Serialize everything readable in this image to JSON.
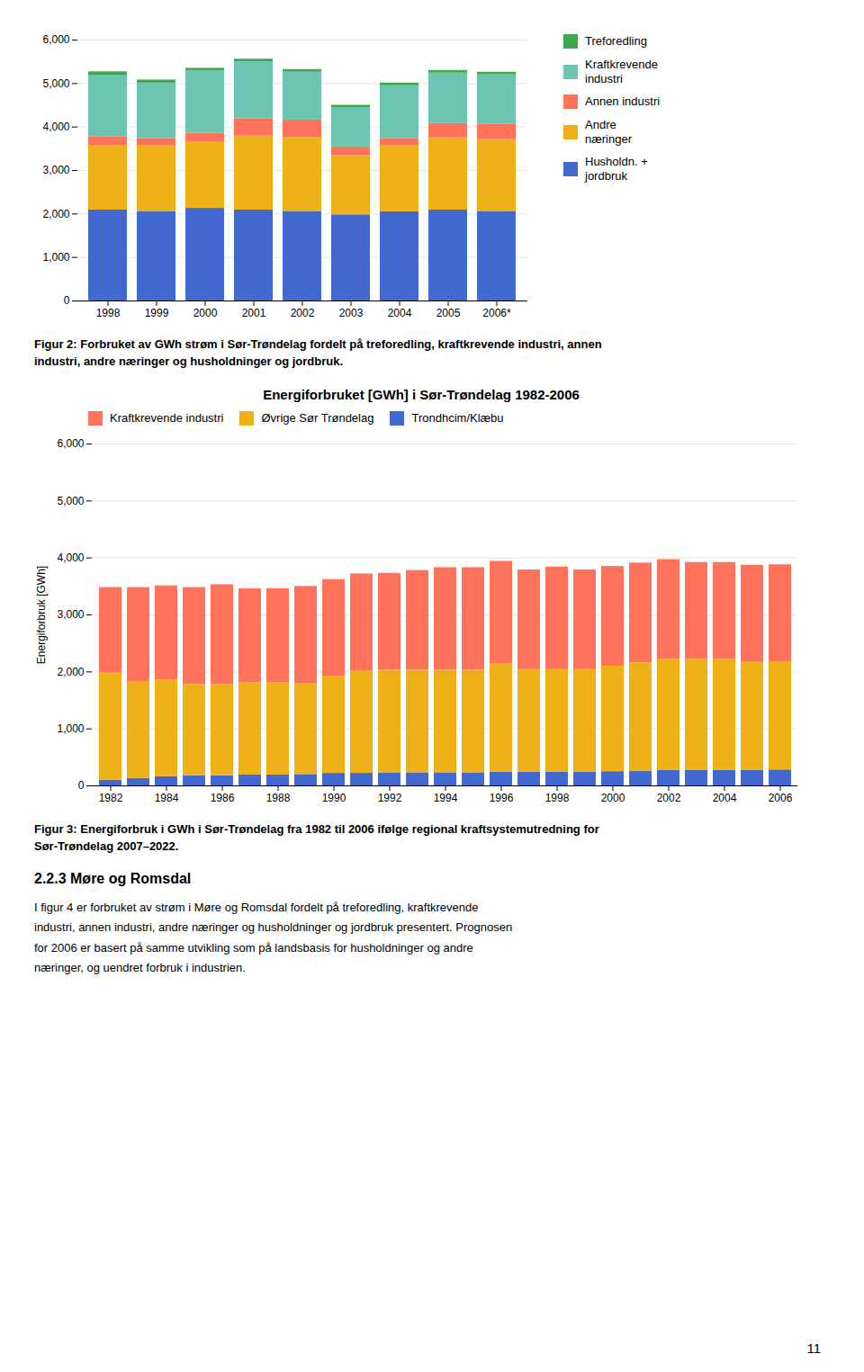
{
  "chart_data": [
    {
      "type": "bar",
      "stacked": true,
      "categories": [
        "1998",
        "1999",
        "2000",
        "2001",
        "2002",
        "2003",
        "2004",
        "2005",
        "2006*"
      ],
      "series": [
        {
          "name": "Husholdn. +\njordbruk",
          "values": [
            2090,
            2060,
            2130,
            2090,
            2060,
            1980,
            2050,
            2090,
            2060
          ]
        },
        {
          "name": "Andre\nnæringer",
          "values": [
            1490,
            1520,
            1530,
            1700,
            1700,
            1360,
            1530,
            1660,
            1650
          ]
        },
        {
          "name": "Annen industri",
          "values": [
            200,
            150,
            200,
            400,
            400,
            200,
            150,
            330,
            350
          ]
        },
        {
          "name": "Kraftkrevende\nindustri",
          "values": [
            1400,
            1280,
            1430,
            1310,
            1100,
            900,
            1220,
            1160,
            1140
          ]
        },
        {
          "name": "Treforedling",
          "values": [
            90,
            70,
            60,
            60,
            60,
            60,
            60,
            60,
            60
          ]
        }
      ],
      "ylim": [
        0,
        6000
      ],
      "yticks": [
        0,
        1000,
        2000,
        3000,
        4000,
        5000,
        6000
      ],
      "grid": true,
      "legend": "right",
      "caption": [
        "Figur 2: Forbruket av GWh strøm i Sør-Trøndelag fordelt på treforedling, kraftkrevende industri, annen",
        "industri, andre næringer og husholdninger og jordbruk."
      ]
    },
    {
      "type": "bar",
      "stacked": true,
      "title": "Energiforbruket [GWh] i Sør-Trøndelag 1982-2006",
      "ylabel": "Energiforbruk [GWh]",
      "categories": [
        "1982",
        null,
        "1984",
        null,
        "1986",
        null,
        "1988",
        null,
        "1990",
        null,
        "1992",
        null,
        "1994",
        null,
        "1996",
        null,
        "1998",
        null,
        "2000",
        null,
        "2002",
        null,
        "2004",
        null,
        "2006"
      ],
      "series": [
        {
          "name": "Trondhcim/Klæbu",
          "values": [
            100,
            130,
            160,
            180,
            180,
            190,
            190,
            200,
            220,
            220,
            230,
            230,
            230,
            230,
            240,
            240,
            240,
            240,
            250,
            260,
            270,
            270,
            270,
            270,
            280
          ]
        },
        {
          "name": "Øvrige Sør Trøndelag",
          "values": [
            1880,
            1700,
            1700,
            1600,
            1600,
            1620,
            1620,
            1600,
            1700,
            1800,
            1800,
            1800,
            1800,
            1800,
            1900,
            1800,
            1800,
            1800,
            1850,
            1900,
            1950,
            1950,
            1950,
            1900,
            1900
          ]
        },
        {
          "name": "Kraftkrevende industri",
          "values": [
            1500,
            1650,
            1650,
            1700,
            1750,
            1650,
            1650,
            1700,
            1700,
            1700,
            1700,
            1750,
            1800,
            1800,
            1800,
            1750,
            1800,
            1750,
            1750,
            1750,
            1750,
            1700,
            1700,
            1700,
            1700
          ]
        }
      ],
      "ylim": [
        0,
        6000
      ],
      "yticks": [
        0,
        1000,
        2000,
        3000,
        4000,
        5000,
        6000
      ],
      "grid": true,
      "legend": "upper left",
      "caption": [
        "Figur 3: Energiforbruk i GWh i Sør-Trøndelag fra 1982 til 2006 ifølge regional kraftsystemutredning for",
        "Sør-Trøndelag 2007–2022."
      ]
    }
  ],
  "section_title": "2.2.3 Møre og Romsdal",
  "body": [
    "I figur 4 er forbruket av strøm i Møre og Romsdal fordelt på treforedling, kraftkrevende",
    "industri, annen industri, andre næringer og husholdninger og jordbruk presentert. Prognosen",
    "for 2006 er basert på samme utvikling som på landsbasis for husholdninger og andre",
    "næringer, og uendret forbruk i industrien."
  ],
  "page_number": "11"
}
